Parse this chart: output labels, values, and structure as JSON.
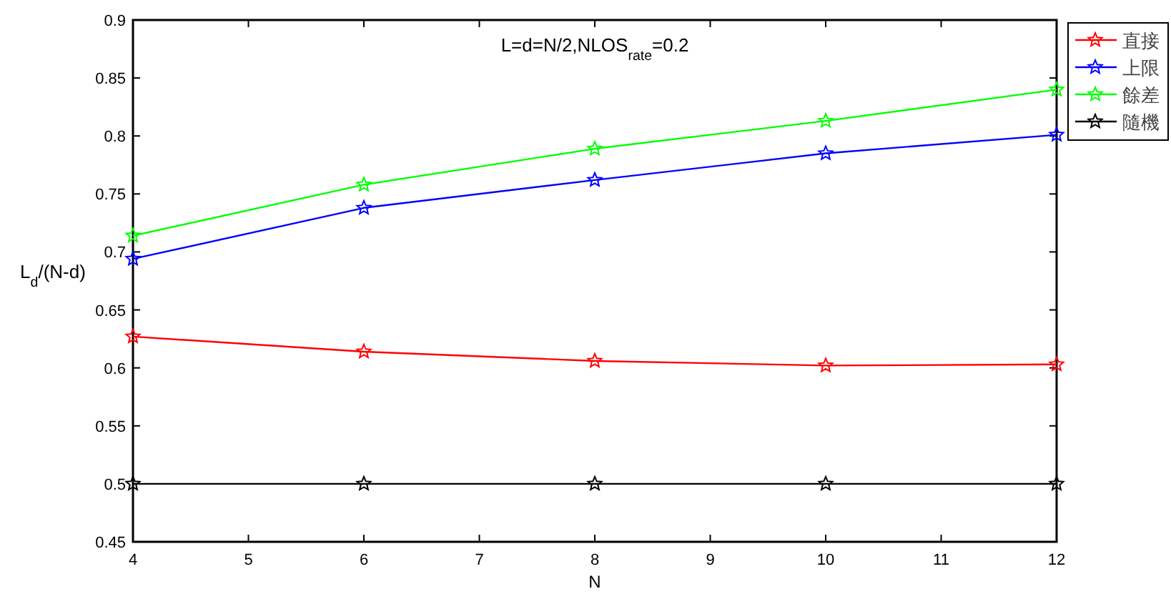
{
  "chart_data": {
    "type": "line",
    "title": "L=d=N/2,NLOS$_{rate}$=0.2",
    "xlabel": "N",
    "ylabel": "L$_{d}$/(N-d)",
    "x": [
      4,
      6,
      8,
      10,
      12
    ],
    "series": [
      {
        "name": "直接",
        "color": "#ff0000",
        "values": [
          0.627,
          0.614,
          0.606,
          0.602,
          0.603
        ]
      },
      {
        "name": "上限",
        "color": "#0000ff",
        "values": [
          0.694,
          0.738,
          0.762,
          0.785,
          0.801
        ]
      },
      {
        "name": "餘差",
        "color": "#00ff00",
        "values": [
          0.714,
          0.758,
          0.789,
          0.813,
          0.84
        ]
      },
      {
        "name": "隨機",
        "color": "#000000",
        "values": [
          0.5,
          0.5,
          0.5,
          0.5,
          0.5
        ]
      }
    ],
    "xlim": [
      4,
      12
    ],
    "xticks": [
      4,
      5,
      6,
      7,
      8,
      9,
      10,
      11,
      12
    ],
    "ylim": [
      0.45,
      0.9
    ],
    "yticks": [
      0.45,
      0.5,
      0.55,
      0.6,
      0.65,
      0.7,
      0.75,
      0.8,
      0.85,
      0.9
    ],
    "grid": false,
    "legend": "top right",
    "marker": "star",
    "line_style": "solid"
  }
}
